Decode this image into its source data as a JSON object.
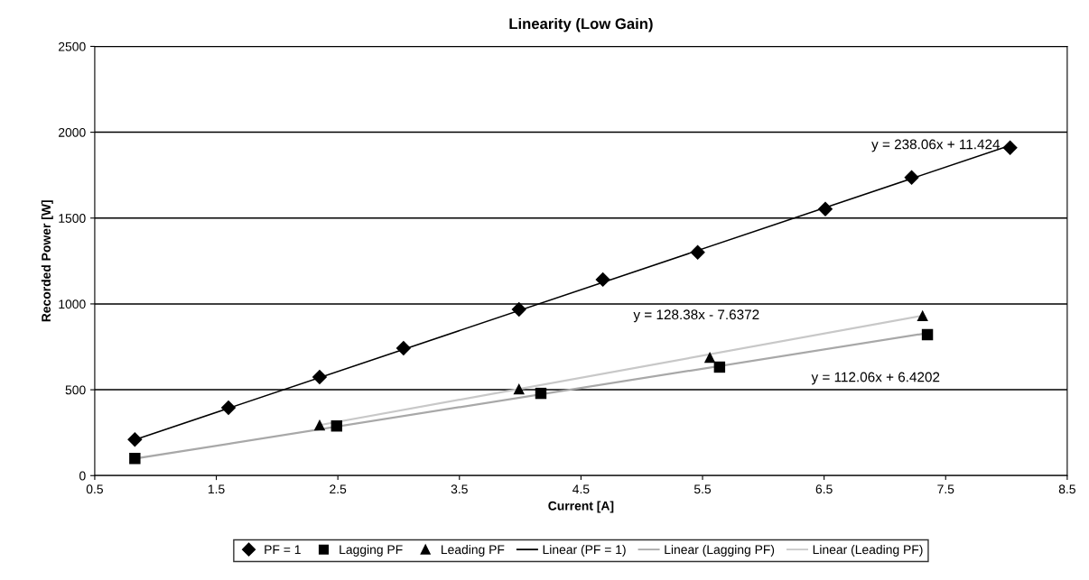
{
  "chart_data": {
    "type": "scatter",
    "title": "Linearity (Low Gain)",
    "xlabel": "Current [A]",
    "ylabel": "Recorded Power [W]",
    "xlim": [
      0.5,
      8.5
    ],
    "xticks": [
      0.5,
      1.5,
      2.5,
      3.5,
      4.5,
      5.5,
      6.5,
      7.5,
      8.5
    ],
    "ylim": [
      0,
      2500
    ],
    "yticks": [
      0,
      500,
      1000,
      1500,
      2000,
      2500
    ],
    "grid": "y",
    "legend": "bottom",
    "series": [
      {
        "name": "PF = 1",
        "marker": "diamond",
        "color": "#000000",
        "x": [
          0.83,
          1.6,
          2.35,
          3.04,
          3.99,
          4.68,
          5.46,
          6.51,
          7.22,
          8.03
        ],
        "values": [
          210,
          395,
          574,
          742,
          968,
          1142,
          1300,
          1553,
          1737,
          1910
        ]
      },
      {
        "name": "Lagging PF",
        "marker": "square",
        "color": "#000000",
        "x": [
          0.83,
          2.49,
          4.17,
          5.64,
          7.35
        ],
        "values": [
          100,
          289,
          479,
          632,
          821
        ]
      },
      {
        "name": "Leading PF",
        "marker": "triangle",
        "color": "#000000",
        "x": [
          2.35,
          3.99,
          5.56,
          7.31
        ],
        "values": [
          295,
          505,
          689,
          932
        ]
      },
      {
        "name": "Linear (PF = 1)",
        "type": "line",
        "line_style": "solid",
        "color": "#000000",
        "x": [
          0.83,
          8.03
        ],
        "values": [
          209,
          1923
        ]
      },
      {
        "name": "Linear (Lagging PF)",
        "type": "line",
        "line_style": "solid",
        "color": "#a8a8a8",
        "x": [
          0.83,
          7.35
        ],
        "values": [
          99,
          830
        ]
      },
      {
        "name": "Linear (Leading PF)",
        "type": "line",
        "line_style": "solid",
        "color": "#c8c8c8",
        "x": [
          2.35,
          7.31
        ],
        "values": [
          294,
          931
        ]
      }
    ],
    "annotations": [
      "y = 238.06x + 11.424",
      "y = 112.06x + 6.4202",
      "y = 128.38x - 7.6372"
    ]
  }
}
